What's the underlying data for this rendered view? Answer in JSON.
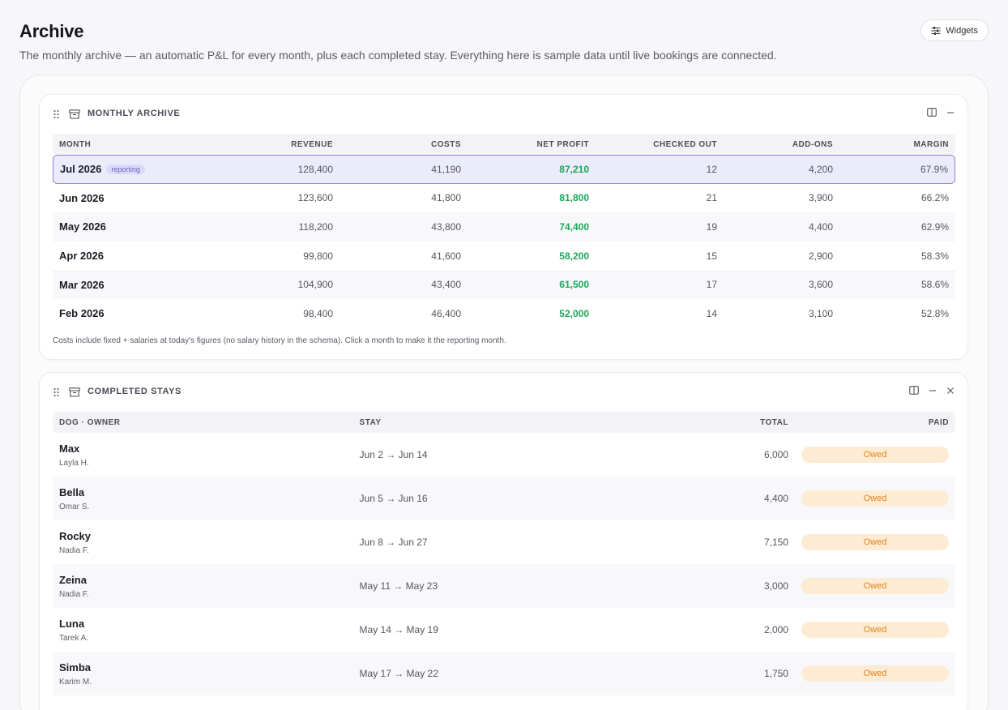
{
  "page": {
    "title": "Archive",
    "subtitle": "The monthly archive — an automatic P&L for every month, plus each completed stay. Everything here is sample data until live bookings are connected.",
    "widgets_label": "Widgets"
  },
  "monthly": {
    "title": "MONTHLY ARCHIVE",
    "columns": [
      "MONTH",
      "REVENUE",
      "COSTS",
      "NET PROFIT",
      "CHECKED OUT",
      "ADD-ONS",
      "MARGIN"
    ],
    "rows": [
      {
        "month": "Jul 2026",
        "badge": "reporting",
        "revenue": "128,400",
        "costs": "41,190",
        "net_profit": "87,210",
        "checked_out": "12",
        "addons": "4,200",
        "margin": "67.9%"
      },
      {
        "month": "Jun 2026",
        "badge": "",
        "revenue": "123,600",
        "costs": "41,800",
        "net_profit": "81,800",
        "checked_out": "21",
        "addons": "3,900",
        "margin": "66.2%"
      },
      {
        "month": "May 2026",
        "badge": "",
        "revenue": "118,200",
        "costs": "43,800",
        "net_profit": "74,400",
        "checked_out": "19",
        "addons": "4,400",
        "margin": "62.9%"
      },
      {
        "month": "Apr 2026",
        "badge": "",
        "revenue": "99,800",
        "costs": "41,600",
        "net_profit": "58,200",
        "checked_out": "15",
        "addons": "2,900",
        "margin": "58.3%"
      },
      {
        "month": "Mar 2026",
        "badge": "",
        "revenue": "104,900",
        "costs": "43,400",
        "net_profit": "61,500",
        "checked_out": "17",
        "addons": "3,600",
        "margin": "58.6%"
      },
      {
        "month": "Feb 2026",
        "badge": "",
        "revenue": "98,400",
        "costs": "46,400",
        "net_profit": "52,000",
        "checked_out": "14",
        "addons": "3,100",
        "margin": "52.8%"
      }
    ],
    "footnote": "Costs include fixed + salaries at today's figures (no salary history in the schema). Click a month to make it the reporting month."
  },
  "stays": {
    "title": "COMPLETED STAYS",
    "columns": [
      "DOG · OWNER",
      "STAY",
      "TOTAL",
      "PAID"
    ],
    "rows": [
      {
        "dog": "Max",
        "owner": "Layla H.",
        "stay": "Jun 2 → Jun 14",
        "total": "6,000",
        "paid": "Owed"
      },
      {
        "dog": "Bella",
        "owner": "Omar S.",
        "stay": "Jun 5 → Jun 16",
        "total": "4,400",
        "paid": "Owed"
      },
      {
        "dog": "Rocky",
        "owner": "Nadia F.",
        "stay": "Jun 8 → Jun 27",
        "total": "7,150",
        "paid": "Owed"
      },
      {
        "dog": "Zeina",
        "owner": "Nadia F.",
        "stay": "May 11 → May 23",
        "total": "3,000",
        "paid": "Owed"
      },
      {
        "dog": "Luna",
        "owner": "Tarek A.",
        "stay": "May 14 → May 19",
        "total": "2,000",
        "paid": "Owed"
      },
      {
        "dog": "Simba",
        "owner": "Karim M.",
        "stay": "May 17 → May 22",
        "total": "1,750",
        "paid": "Owed"
      }
    ]
  },
  "colors": {
    "accent": "#8d86dc",
    "profit": "#1ea55a",
    "owed_bg": "#fdebd4",
    "owed_text": "#e0871b"
  },
  "icons": {
    "widgets": "sliders-icon",
    "drag": "drag-handle-icon",
    "archive": "archive-box-icon",
    "columns": "columns-icon",
    "minimize": "minimize-icon",
    "close": "close-icon"
  }
}
